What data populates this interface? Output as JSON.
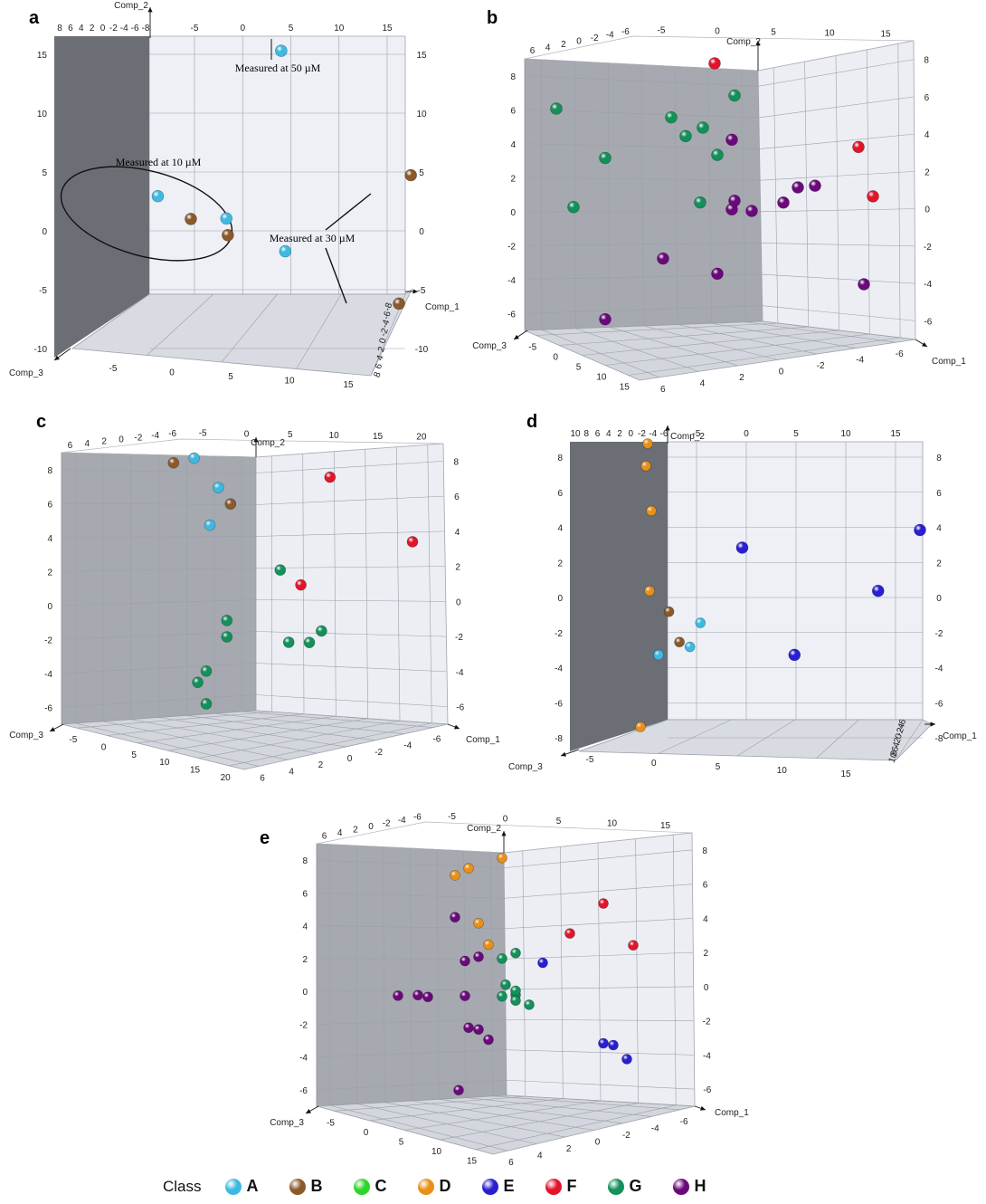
{
  "legend": {
    "title": "Class",
    "classes": [
      {
        "label": "A",
        "color": "#3fb9e0"
      },
      {
        "label": "B",
        "color": "#8a5a2b"
      },
      {
        "label": "C",
        "color": "#2fd42a"
      },
      {
        "label": "D",
        "color": "#e8901a"
      },
      {
        "label": "E",
        "color": "#2a1fd0"
      },
      {
        "label": "F",
        "color": "#e0152a"
      },
      {
        "label": "G",
        "color": "#14905a"
      },
      {
        "label": "H",
        "color": "#6a0a7a"
      }
    ]
  },
  "chart_data": [
    {
      "panel": "a",
      "type": "scatter",
      "axes": {
        "x": "Comp_1",
        "y": "Comp_2",
        "z": "Comp_3"
      },
      "leftwall_ticks": [
        "8",
        "6",
        "4",
        "2",
        "0",
        "-2",
        "-4",
        "-6",
        "-8"
      ],
      "topfront_ticks": [
        "-5",
        "0",
        "5",
        "10",
        "15"
      ],
      "left_y_ticks": [
        "15",
        "10",
        "5",
        "0",
        "-5",
        "-10"
      ],
      "right_y_ticks": [
        "15",
        "10",
        "5",
        "0",
        "-5",
        "-10"
      ],
      "floor_ticks": [
        "-5",
        "0",
        "5",
        "10",
        "15"
      ],
      "side_ticks": [
        "8",
        "6",
        "4",
        "2",
        "0",
        "-2",
        "-4",
        "-6",
        "-8"
      ],
      "annotations": [
        "Measured at 50 µM",
        "Measured at 10 µM",
        "Measured at 30 µM"
      ],
      "points": [
        {
          "class": "A",
          "x": 4,
          "y": 15.3,
          "z": 0
        },
        {
          "class": "A",
          "x": -5,
          "y": 3.5,
          "z": -9
        },
        {
          "class": "A",
          "x": 0,
          "y": 1.3,
          "z": -4
        },
        {
          "class": "A",
          "x": 4,
          "y": -1.8,
          "z": 1
        },
        {
          "class": "B",
          "x": -2,
          "y": 1.5,
          "z": -8
        },
        {
          "class": "B",
          "x": 1,
          "y": 0,
          "z": -6
        },
        {
          "class": "B",
          "x": 14.5,
          "y": 4.3,
          "z": 7
        },
        {
          "class": "B",
          "x": 12,
          "y": -6.8,
          "z": 10
        }
      ]
    },
    {
      "panel": "b",
      "type": "scatter",
      "axes": {
        "x": "Comp_1",
        "y": "Comp_2",
        "z": "Comp_3"
      },
      "left_y_ticks": [
        "8",
        "6",
        "4",
        "2",
        "0",
        "-2",
        "-4",
        "-6"
      ],
      "right_y_ticks": [
        "8",
        "6",
        "4",
        "2",
        "0",
        "-2",
        "-4",
        "-6"
      ],
      "top_left_ticks": [
        "6",
        "4",
        "2",
        "0",
        "-2",
        "-4",
        "-6"
      ],
      "top_right_ticks": [
        "-5",
        "0",
        "5",
        "10",
        "15"
      ],
      "floor_left_ticks": [
        "-5",
        "0",
        "5",
        "10",
        "15"
      ],
      "floor_right_ticks": [
        "6",
        "4",
        "2",
        "0",
        "-2",
        "-4",
        "-6"
      ],
      "points": [
        {
          "class": "H",
          "x": -4,
          "y": 8.5,
          "z": -2
        },
        {
          "class": "H",
          "x": 0,
          "y": 4.5,
          "z": 2
        },
        {
          "class": "H",
          "x": -1,
          "y": 5.5,
          "z": 5
        },
        {
          "class": "H",
          "x": 2,
          "y": 5.8,
          "z": 14
        },
        {
          "class": "H",
          "x": -1,
          "y": 1.8,
          "z": 7
        },
        {
          "class": "H",
          "x": 0,
          "y": 1.6,
          "z": 6
        },
        {
          "class": "H",
          "x": -1,
          "y": 1.2,
          "z": 6
        },
        {
          "class": "H",
          "x": 0,
          "y": 1.2,
          "z": 9
        },
        {
          "class": "H",
          "x": 1,
          "y": 0.2,
          "z": 10
        },
        {
          "class": "H",
          "x": 1,
          "y": 0.1,
          "z": 11
        },
        {
          "class": "H",
          "x": 0,
          "y": -2.5,
          "z": 6
        },
        {
          "class": "G",
          "x": -5,
          "y": 2,
          "z": -4
        },
        {
          "class": "G",
          "x": -1,
          "y": 1.3,
          "z": 4
        },
        {
          "class": "G",
          "x": -4,
          "y": -1,
          "z": -2
        },
        {
          "class": "G",
          "x": -5,
          "y": -3.8,
          "z": -5
        },
        {
          "class": "G",
          "x": -1,
          "y": -1.5,
          "z": 5
        },
        {
          "class": "G",
          "x": -2,
          "y": -2.5,
          "z": 3
        },
        {
          "class": "G",
          "x": -2,
          "y": -3,
          "z": 4
        },
        {
          "class": "G",
          "x": -3,
          "y": -3.5,
          "z": 2
        },
        {
          "class": "G",
          "x": -1,
          "y": -5,
          "z": 6
        },
        {
          "class": "F",
          "x": 5,
          "y": 0.3,
          "z": 15
        },
        {
          "class": "F",
          "x": 4,
          "y": -2.5,
          "z": 14
        },
        {
          "class": "F",
          "x": 0,
          "y": -7,
          "z": 5
        }
      ]
    },
    {
      "panel": "c",
      "type": "scatter",
      "axes": {
        "x": "Comp_1",
        "y": "Comp_2",
        "z": "Comp_3"
      },
      "left_y_ticks": [
        "8",
        "6",
        "4",
        "2",
        "0",
        "-2",
        "-4",
        "-6"
      ],
      "right_y_ticks": [
        "8",
        "6",
        "4",
        "2",
        "0",
        "-2",
        "-4",
        "-6"
      ],
      "top_left_ticks": [
        "6",
        "4",
        "2",
        "0",
        "-2",
        "-4",
        "-6"
      ],
      "top_right_ticks": [
        "-5",
        "0",
        "5",
        "10",
        "15",
        "20"
      ],
      "floor_left_ticks": [
        "-5",
        "0",
        "5",
        "10",
        "15",
        "20"
      ],
      "floor_right_ticks": [
        "6",
        "4",
        "2",
        "0",
        "-2",
        "-4",
        "-6"
      ],
      "points": [
        {
          "class": "G",
          "x": -4,
          "y": 8,
          "z": 0
        },
        {
          "class": "G",
          "x": -5,
          "y": 6.8,
          "z": -1
        },
        {
          "class": "G",
          "x": -4,
          "y": 6,
          "z": 0
        },
        {
          "class": "G",
          "x": -3,
          "y": 3.8,
          "z": 2
        },
        {
          "class": "G",
          "x": -3,
          "y": 2.8,
          "z": 2
        },
        {
          "class": "G",
          "x": 0,
          "y": 3.8,
          "z": 8
        },
        {
          "class": "G",
          "x": 1,
          "y": 3.7,
          "z": 10
        },
        {
          "class": "G",
          "x": 1,
          "y": 3,
          "z": 11
        },
        {
          "class": "G",
          "x": -1,
          "y": -0.5,
          "z": 7
        },
        {
          "class": "F",
          "x": 0,
          "y": 0.3,
          "z": 9
        },
        {
          "class": "F",
          "x": 6,
          "y": -3,
          "z": 20
        },
        {
          "class": "F",
          "x": 2,
          "y": -6.5,
          "z": 12
        },
        {
          "class": "A",
          "x": -5,
          "y": -2.8,
          "z": 0
        },
        {
          "class": "A",
          "x": -4,
          "y": -5.2,
          "z": 1
        },
        {
          "class": "A",
          "x": -4,
          "y": -7,
          "z": -1
        },
        {
          "class": "B",
          "x": -4,
          "y": -4.2,
          "z": 2
        },
        {
          "class": "B",
          "x": -5,
          "y": -6.6,
          "z": -3
        }
      ]
    },
    {
      "panel": "d",
      "type": "scatter",
      "axes": {
        "x": "Comp_1",
        "y": "Comp_2",
        "z": "Comp_3"
      },
      "leftwall_ticks": [
        "10",
        "8",
        "6",
        "4",
        "2",
        "0",
        "-2",
        "-4",
        "-6"
      ],
      "topfront_ticks": [
        "-5",
        "0",
        "5",
        "10",
        "15"
      ],
      "left_y_ticks": [
        "8",
        "6",
        "4",
        "2",
        "0",
        "-2",
        "-4",
        "-6",
        "-8"
      ],
      "right_y_ticks": [
        "8",
        "6",
        "4",
        "2",
        "0",
        "-2",
        "-4",
        "-6",
        "-8"
      ],
      "floor_ticks": [
        "-5",
        "0",
        "5",
        "10",
        "15"
      ],
      "side_ticks": [
        "10",
        "8",
        "6",
        "4",
        "2",
        "0",
        "-2",
        "-4",
        "-6"
      ],
      "points": [
        {
          "class": "D",
          "x": -1,
          "y": 9.2,
          "z": 0
        },
        {
          "class": "D",
          "x": -1,
          "y": 7.8,
          "z": 0
        },
        {
          "class": "D",
          "x": -1,
          "y": 5,
          "z": 0
        },
        {
          "class": "D",
          "x": -1,
          "y": 0,
          "z": 0
        },
        {
          "class": "D",
          "x": -1,
          "y": -8.5,
          "z": 0
        },
        {
          "class": "E",
          "x": 1,
          "y": 2.7,
          "z": 0
        },
        {
          "class": "E",
          "x": 18,
          "y": 3.8,
          "z": 0
        },
        {
          "class": "E",
          "x": 14,
          "y": 0,
          "z": 0
        },
        {
          "class": "E",
          "x": 6,
          "y": -4,
          "z": 0
        },
        {
          "class": "A",
          "x": -3,
          "y": -2,
          "z": 0
        },
        {
          "class": "A",
          "x": -4,
          "y": -3.5,
          "z": 0
        },
        {
          "class": "A",
          "x": -7,
          "y": -4,
          "z": 0
        },
        {
          "class": "B",
          "x": -6,
          "y": -1.3,
          "z": 0
        },
        {
          "class": "B",
          "x": -5,
          "y": -3.2,
          "z": 0
        }
      ]
    },
    {
      "panel": "e",
      "type": "scatter",
      "axes": {
        "x": "Comp_1",
        "y": "Comp_2",
        "z": "Comp_3"
      },
      "left_y_ticks": [
        "8",
        "6",
        "4",
        "2",
        "0",
        "-2",
        "-4",
        "-6"
      ],
      "right_y_ticks": [
        "8",
        "6",
        "4",
        "2",
        "0",
        "-2",
        "-4",
        "-6"
      ],
      "top_left_ticks": [
        "6",
        "4",
        "2",
        "0",
        "-2",
        "-4",
        "-6"
      ],
      "top_right_ticks": [
        "-5",
        "0",
        "5",
        "10",
        "15"
      ],
      "floor_left_ticks": [
        "-5",
        "0",
        "5",
        "10",
        "15"
      ],
      "floor_right_ticks": [
        "6",
        "4",
        "2",
        "0",
        "-2",
        "-4",
        "-6"
      ],
      "points": [
        {
          "class": "H",
          "x": -3,
          "y": 9,
          "z": 0
        },
        {
          "class": "H",
          "x": -5,
          "y": 2.5,
          "z": -5
        },
        {
          "class": "H",
          "x": -3,
          "y": 2.2,
          "z": -3
        },
        {
          "class": "H",
          "x": -2,
          "y": 2.2,
          "z": -2
        },
        {
          "class": "H",
          "x": -2,
          "y": 4.4,
          "z": 1
        },
        {
          "class": "H",
          "x": -1,
          "y": 4.4,
          "z": 2
        },
        {
          "class": "H",
          "x": 0,
          "y": 5,
          "z": 3
        },
        {
          "class": "H",
          "x": -1,
          "y": 2,
          "z": 1
        },
        {
          "class": "H",
          "x": -1,
          "y": -0.5,
          "z": 1
        },
        {
          "class": "H",
          "x": -1,
          "y": -0.8,
          "z": 2
        },
        {
          "class": "H",
          "x": -2,
          "y": -3.5,
          "z": 0
        },
        {
          "class": "G",
          "x": 0,
          "y": 2.5,
          "z": 6
        },
        {
          "class": "G",
          "x": 0,
          "y": 1.8,
          "z": 5
        },
        {
          "class": "G",
          "x": 0,
          "y": 1.5,
          "z": 5
        },
        {
          "class": "G",
          "x": -1,
          "y": 1.2,
          "z": 4
        },
        {
          "class": "G",
          "x": 0,
          "y": 1.9,
          "z": 4
        },
        {
          "class": "G",
          "x": 0,
          "y": 2.2,
          "z": 5
        },
        {
          "class": "G",
          "x": 0,
          "y": -0.8,
          "z": 4
        },
        {
          "class": "G",
          "x": 0,
          "y": -1.2,
          "z": 5
        },
        {
          "class": "E",
          "x": 3,
          "y": 6,
          "z": 14
        },
        {
          "class": "E",
          "x": 2,
          "y": 5,
          "z": 12
        },
        {
          "class": "E",
          "x": 3,
          "y": 5,
          "z": 13
        },
        {
          "class": "E",
          "x": 0,
          "y": -0.5,
          "z": 7
        },
        {
          "class": "F",
          "x": 0,
          "y": -2.6,
          "z": 9
        },
        {
          "class": "F",
          "x": 5,
          "y": -2.4,
          "z": 15
        },
        {
          "class": "F",
          "x": 2,
          "y": -5,
          "z": 12
        },
        {
          "class": "D",
          "x": 0,
          "y": -1.8,
          "z": 3
        },
        {
          "class": "D",
          "x": -1,
          "y": -3.2,
          "z": 2
        },
        {
          "class": "D",
          "x": -2,
          "y": -6.5,
          "z": 0
        },
        {
          "class": "D",
          "x": -2,
          "y": -7,
          "z": 1
        },
        {
          "class": "D",
          "x": 0,
          "y": -8,
          "z": 4
        }
      ]
    }
  ]
}
